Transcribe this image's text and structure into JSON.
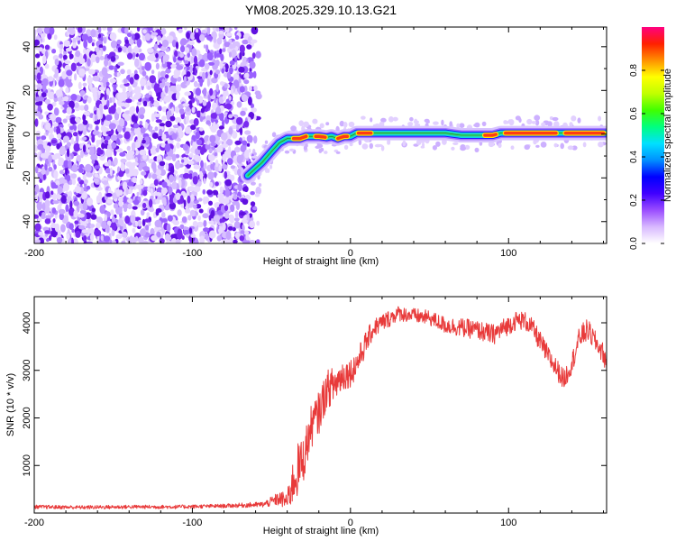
{
  "title": "YM08.2025.329.10.13.G21",
  "chart_data": [
    {
      "type": "heatmap",
      "name": "spectrogram",
      "xlabel": "Height of straight line (km)",
      "ylabel": "Frequency (Hz)",
      "xlim": [
        -200,
        162
      ],
      "ylim": [
        -50,
        49
      ],
      "xticks": [
        -200,
        -100,
        0,
        100
      ],
      "yticks": [
        -40,
        -20,
        0,
        20,
        40
      ],
      "noise_region_x": [
        -200,
        -57
      ],
      "ridge": {
        "x": [
          -65,
          -56,
          -50,
          -45,
          -40,
          -32,
          -28,
          -20,
          -15,
          -12,
          -8,
          -4,
          0,
          4,
          8,
          12,
          15,
          20,
          30,
          40,
          50,
          60,
          70,
          80,
          90,
          95,
          100,
          110,
          120,
          130,
          140,
          150,
          162
        ],
        "y": [
          -19,
          -13,
          -8,
          -4,
          -2,
          -2,
          -1,
          -1,
          -1.5,
          -1,
          -2,
          -1,
          -1,
          0.5,
          0.5,
          0.5,
          0.5,
          0.5,
          0.5,
          0.5,
          0.5,
          0.5,
          -0.5,
          -0.5,
          -0.5,
          0.5,
          0.5,
          0.5,
          0.5,
          0.5,
          0.5,
          0.5,
          0.5
        ]
      },
      "peak_segments": [
        [
          -36,
          -28
        ],
        [
          -22,
          -16
        ],
        [
          -8,
          -2
        ],
        [
          5,
          13
        ],
        [
          85,
          92
        ],
        [
          98,
          130
        ],
        [
          136,
          160
        ]
      ],
      "colorbar": {
        "label": "Normalized spectral amplitude",
        "range": [
          0,
          1
        ],
        "ticks": [
          0.0,
          0.2,
          0.4,
          0.6,
          0.8
        ],
        "tick_labels": [
          "0.0",
          "0.2",
          "0.4",
          "0.6",
          "0.8"
        ],
        "colors": [
          "#ffffff",
          "#d8b8ff",
          "#9a4dff",
          "#4000ff",
          "#0000ff",
          "#0090ff",
          "#00e0ff",
          "#00ff80",
          "#40ff00",
          "#c0ff00",
          "#ffff00",
          "#ff9000",
          "#ff2000",
          "#ff0080"
        ]
      }
    },
    {
      "type": "line",
      "name": "snr",
      "xlabel": "Height of straight line (km)",
      "ylabel": "SNR (10 * v/v)",
      "xlim": [
        -200,
        162
      ],
      "ylim": [
        0,
        4550
      ],
      "xticks": [
        -200,
        -100,
        0,
        100
      ],
      "yticks": [
        1000,
        2000,
        3000,
        4000
      ],
      "series": [
        {
          "name": "SNR",
          "color": "#e83a3a",
          "x": [
            -200,
            -170,
            -140,
            -110,
            -80,
            -55,
            -45,
            -40,
            -35,
            -30,
            -25,
            -20,
            -15,
            -10,
            -5,
            0,
            5,
            10,
            15,
            20,
            25,
            30,
            40,
            50,
            60,
            70,
            80,
            90,
            95,
            100,
            105,
            110,
            115,
            120,
            125,
            130,
            135,
            140,
            145,
            150,
            155,
            160,
            162
          ],
          "y": [
            130,
            120,
            130,
            130,
            150,
            180,
            300,
            250,
            800,
            1100,
            1800,
            2100,
            2600,
            2700,
            2900,
            2950,
            3200,
            3600,
            3900,
            4000,
            4100,
            4200,
            4150,
            4100,
            3950,
            3900,
            3850,
            3750,
            3850,
            3950,
            4050,
            4050,
            3900,
            3600,
            3300,
            3050,
            2800,
            3150,
            3700,
            3850,
            3600,
            3350,
            3100
          ],
          "noise_amplitude": [
            40,
            40,
            40,
            40,
            40,
            60,
            150,
            200,
            600,
            500,
            450,
            450,
            400,
            400,
            350,
            300,
            300,
            250,
            200,
            200,
            180,
            160,
            160,
            160,
            180,
            200,
            200,
            220,
            220,
            200,
            200,
            200,
            200,
            220,
            220,
            220,
            220,
            220,
            240,
            240,
            220,
            220,
            200
          ]
        }
      ]
    }
  ]
}
